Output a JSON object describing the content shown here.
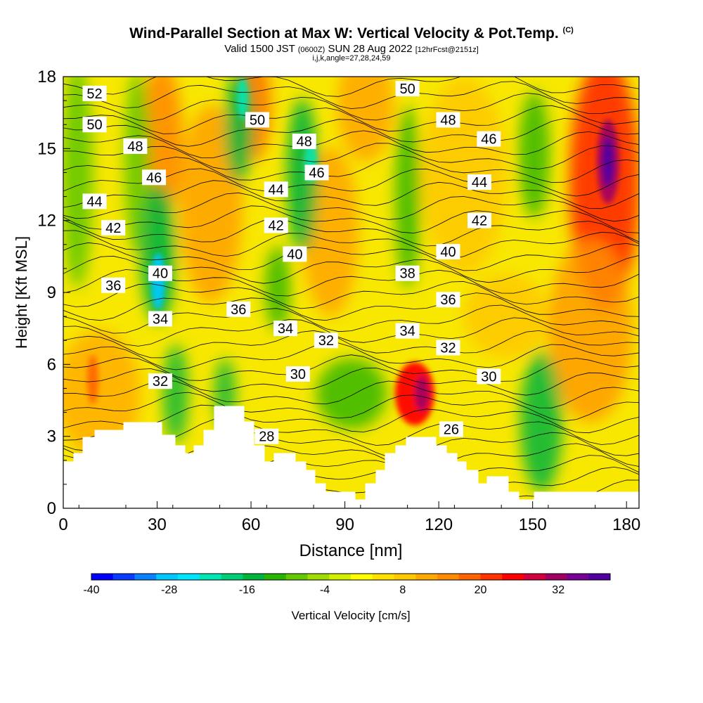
{
  "title": {
    "main": "Wind-Parallel Section at Max W: Vertical Velocity & Pot.Temp.",
    "copyright": "(C)",
    "valid": "Valid 1500 JST",
    "utc": "(0600Z)",
    "date": "SUN 28 Aug 2022",
    "fcst": "[12hrFcst@2151z]",
    "indices": "i,j,k,angle=27,28,24,59"
  },
  "chart_data": {
    "type": "heatmap",
    "xlabel": "Distance [nm]",
    "ylabel": "Height [Kft MSL]",
    "xlim": [
      0,
      184
    ],
    "ylim": [
      0,
      18
    ],
    "x_ticks": [
      "0",
      "30",
      "60",
      "90",
      "120",
      "150",
      "180"
    ],
    "y_ticks": [
      "0",
      "3",
      "6",
      "9",
      "12",
      "15",
      "18"
    ],
    "colorbar": {
      "label": "Vertical Velocity [cm/s]",
      "tick_labels": [
        "-40",
        "-28",
        "-16",
        "-4",
        "8",
        "20",
        "32"
      ],
      "colors": [
        "#0000ff",
        "#0a3cff",
        "#0a82ff",
        "#00c8ff",
        "#00e6ff",
        "#00e6b4",
        "#00cd78",
        "#00b43c",
        "#28b400",
        "#64c800",
        "#a0dc00",
        "#d2f000",
        "#ffff00",
        "#ffe100",
        "#ffc800",
        "#ffaa00",
        "#ff8c00",
        "#ff6400",
        "#ff3200",
        "#ff0000",
        "#d2003c",
        "#a00064",
        "#780096",
        "#5000a0"
      ]
    },
    "contour_labels": [
      {
        "value": "52",
        "x": 10,
        "y": 17.3
      },
      {
        "value": "50",
        "x": 10,
        "y": 16.0
      },
      {
        "value": "48",
        "x": 23,
        "y": 15.1
      },
      {
        "value": "46",
        "x": 29,
        "y": 13.8
      },
      {
        "value": "44",
        "x": 10,
        "y": 12.8
      },
      {
        "value": "42",
        "x": 16,
        "y": 11.7
      },
      {
        "value": "40",
        "x": 31,
        "y": 9.8
      },
      {
        "value": "36",
        "x": 16,
        "y": 9.3
      },
      {
        "value": "34",
        "x": 31,
        "y": 7.9
      },
      {
        "value": "32",
        "x": 31,
        "y": 5.3
      },
      {
        "value": "50",
        "x": 62,
        "y": 16.2
      },
      {
        "value": "48",
        "x": 77,
        "y": 15.3
      },
      {
        "value": "46",
        "x": 81,
        "y": 14.0
      },
      {
        "value": "44",
        "x": 68,
        "y": 13.3
      },
      {
        "value": "42",
        "x": 68,
        "y": 11.8
      },
      {
        "value": "40",
        "x": 74,
        "y": 10.6
      },
      {
        "value": "36",
        "x": 56,
        "y": 8.3
      },
      {
        "value": "34",
        "x": 71,
        "y": 7.5
      },
      {
        "value": "32",
        "x": 84,
        "y": 7.0
      },
      {
        "value": "30",
        "x": 75,
        "y": 5.6
      },
      {
        "value": "28",
        "x": 65,
        "y": 3.0
      },
      {
        "value": "50",
        "x": 110,
        "y": 17.5
      },
      {
        "value": "48",
        "x": 123,
        "y": 16.2
      },
      {
        "value": "46",
        "x": 136,
        "y": 15.4
      },
      {
        "value": "44",
        "x": 133,
        "y": 13.6
      },
      {
        "value": "42",
        "x": 133,
        "y": 12.0
      },
      {
        "value": "40",
        "x": 123,
        "y": 10.7
      },
      {
        "value": "38",
        "x": 110,
        "y": 9.8
      },
      {
        "value": "36",
        "x": 123,
        "y": 8.7
      },
      {
        "value": "34",
        "x": 110,
        "y": 7.4
      },
      {
        "value": "32",
        "x": 123,
        "y": 6.7
      },
      {
        "value": "30",
        "x": 136,
        "y": 5.5
      },
      {
        "value": "26",
        "x": 124,
        "y": 3.3
      }
    ]
  }
}
